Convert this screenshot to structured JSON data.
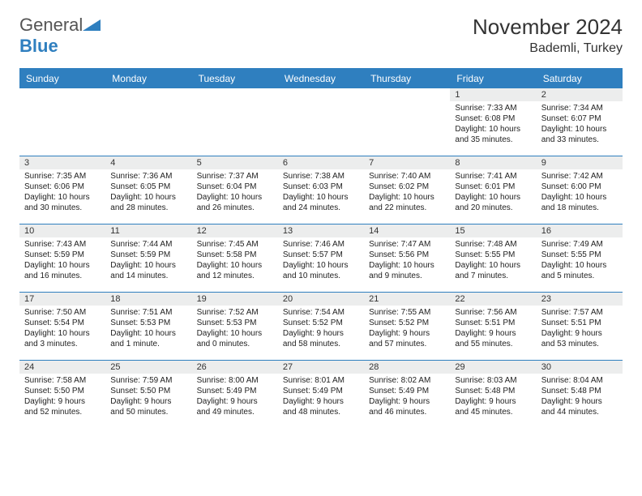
{
  "logo": {
    "text1": "General",
    "text2": "Blue"
  },
  "title": {
    "month": "November 2024",
    "location": "Bademli, Turkey"
  },
  "colors": {
    "accent": "#2f7fbf",
    "headerText": "#ffffff",
    "dayBg": "#eceded",
    "border": "#2f7fbf",
    "bodyText": "#222222"
  },
  "calendar": {
    "weekdays": [
      "Sunday",
      "Monday",
      "Tuesday",
      "Wednesday",
      "Thursday",
      "Friday",
      "Saturday"
    ],
    "startOffset": 5,
    "days": [
      {
        "n": 1,
        "sr": "7:33 AM",
        "ss": "6:08 PM",
        "dl": "10 hours and 35 minutes."
      },
      {
        "n": 2,
        "sr": "7:34 AM",
        "ss": "6:07 PM",
        "dl": "10 hours and 33 minutes."
      },
      {
        "n": 3,
        "sr": "7:35 AM",
        "ss": "6:06 PM",
        "dl": "10 hours and 30 minutes."
      },
      {
        "n": 4,
        "sr": "7:36 AM",
        "ss": "6:05 PM",
        "dl": "10 hours and 28 minutes."
      },
      {
        "n": 5,
        "sr": "7:37 AM",
        "ss": "6:04 PM",
        "dl": "10 hours and 26 minutes."
      },
      {
        "n": 6,
        "sr": "7:38 AM",
        "ss": "6:03 PM",
        "dl": "10 hours and 24 minutes."
      },
      {
        "n": 7,
        "sr": "7:40 AM",
        "ss": "6:02 PM",
        "dl": "10 hours and 22 minutes."
      },
      {
        "n": 8,
        "sr": "7:41 AM",
        "ss": "6:01 PM",
        "dl": "10 hours and 20 minutes."
      },
      {
        "n": 9,
        "sr": "7:42 AM",
        "ss": "6:00 PM",
        "dl": "10 hours and 18 minutes."
      },
      {
        "n": 10,
        "sr": "7:43 AM",
        "ss": "5:59 PM",
        "dl": "10 hours and 16 minutes."
      },
      {
        "n": 11,
        "sr": "7:44 AM",
        "ss": "5:59 PM",
        "dl": "10 hours and 14 minutes."
      },
      {
        "n": 12,
        "sr": "7:45 AM",
        "ss": "5:58 PM",
        "dl": "10 hours and 12 minutes."
      },
      {
        "n": 13,
        "sr": "7:46 AM",
        "ss": "5:57 PM",
        "dl": "10 hours and 10 minutes."
      },
      {
        "n": 14,
        "sr": "7:47 AM",
        "ss": "5:56 PM",
        "dl": "10 hours and 9 minutes."
      },
      {
        "n": 15,
        "sr": "7:48 AM",
        "ss": "5:55 PM",
        "dl": "10 hours and 7 minutes."
      },
      {
        "n": 16,
        "sr": "7:49 AM",
        "ss": "5:55 PM",
        "dl": "10 hours and 5 minutes."
      },
      {
        "n": 17,
        "sr": "7:50 AM",
        "ss": "5:54 PM",
        "dl": "10 hours and 3 minutes."
      },
      {
        "n": 18,
        "sr": "7:51 AM",
        "ss": "5:53 PM",
        "dl": "10 hours and 1 minute."
      },
      {
        "n": 19,
        "sr": "7:52 AM",
        "ss": "5:53 PM",
        "dl": "10 hours and 0 minutes."
      },
      {
        "n": 20,
        "sr": "7:54 AM",
        "ss": "5:52 PM",
        "dl": "9 hours and 58 minutes."
      },
      {
        "n": 21,
        "sr": "7:55 AM",
        "ss": "5:52 PM",
        "dl": "9 hours and 57 minutes."
      },
      {
        "n": 22,
        "sr": "7:56 AM",
        "ss": "5:51 PM",
        "dl": "9 hours and 55 minutes."
      },
      {
        "n": 23,
        "sr": "7:57 AM",
        "ss": "5:51 PM",
        "dl": "9 hours and 53 minutes."
      },
      {
        "n": 24,
        "sr": "7:58 AM",
        "ss": "5:50 PM",
        "dl": "9 hours and 52 minutes."
      },
      {
        "n": 25,
        "sr": "7:59 AM",
        "ss": "5:50 PM",
        "dl": "9 hours and 50 minutes."
      },
      {
        "n": 26,
        "sr": "8:00 AM",
        "ss": "5:49 PM",
        "dl": "9 hours and 49 minutes."
      },
      {
        "n": 27,
        "sr": "8:01 AM",
        "ss": "5:49 PM",
        "dl": "9 hours and 48 minutes."
      },
      {
        "n": 28,
        "sr": "8:02 AM",
        "ss": "5:49 PM",
        "dl": "9 hours and 46 minutes."
      },
      {
        "n": 29,
        "sr": "8:03 AM",
        "ss": "5:48 PM",
        "dl": "9 hours and 45 minutes."
      },
      {
        "n": 30,
        "sr": "8:04 AM",
        "ss": "5:48 PM",
        "dl": "9 hours and 44 minutes."
      }
    ],
    "labels": {
      "sunrise": "Sunrise:",
      "sunset": "Sunset:",
      "daylight": "Daylight:"
    }
  }
}
